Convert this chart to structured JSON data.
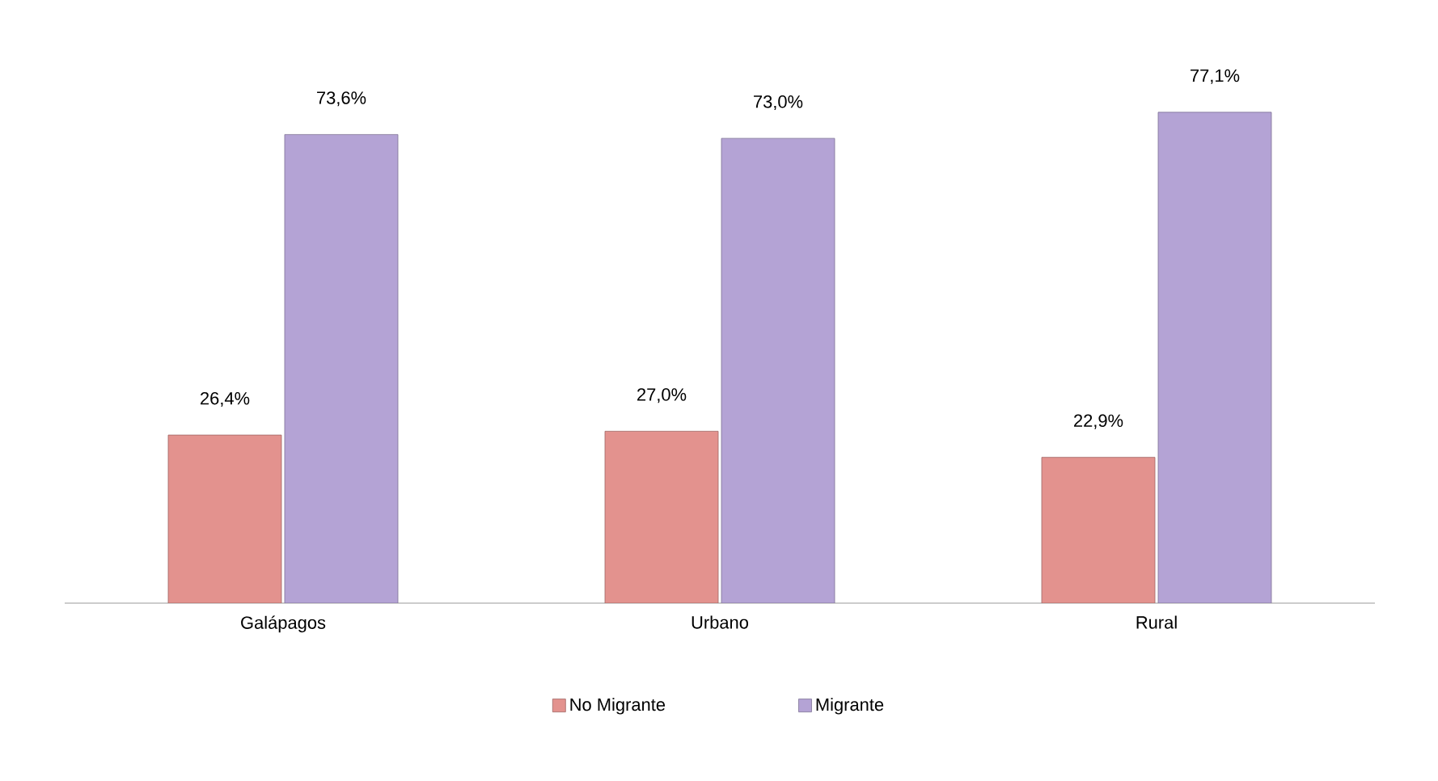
{
  "chart_data": {
    "type": "bar",
    "categories": [
      "Galápagos",
      "Urbano",
      "Rural"
    ],
    "series": [
      {
        "name": "No Migrante",
        "color": "#e3928e",
        "values": [
          26.4,
          27.0,
          22.9
        ],
        "value_labels": [
          "26,4%",
          "27,0%",
          "22,9%"
        ]
      },
      {
        "name": "Migrante",
        "color": "#b4a3d5",
        "values": [
          73.6,
          73.0,
          77.1
        ],
        "value_labels": [
          "73,6%",
          "73,0%",
          "77,1%"
        ]
      }
    ],
    "legend": "bottom"
  }
}
